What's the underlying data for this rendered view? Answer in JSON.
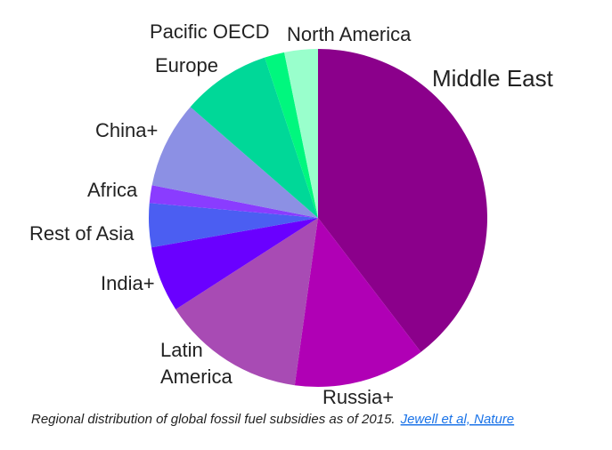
{
  "chart_data": {
    "type": "pie",
    "caption": "Regional distribution of global fossil fuel subsidies as of 2015.",
    "source": "Jewell et al, Nature",
    "categories": [
      "Middle East",
      "Russia+",
      "Latin America",
      "India+",
      "Rest of Asia",
      "Africa",
      "China+",
      "Europe",
      "Pacific OECD",
      "North America"
    ],
    "values": [
      39.6,
      12.6,
      13.7,
      6.3,
      4.2,
      1.7,
      8.3,
      8.5,
      1.9,
      3.2
    ],
    "colors": [
      "#8b008b",
      "#b000b5",
      "#a84bb4",
      "#6a00ff",
      "#4b5ef2",
      "#8a3cff",
      "#8c90e4",
      "#00d898",
      "#00f77e",
      "#99ffcc"
    ]
  }
}
